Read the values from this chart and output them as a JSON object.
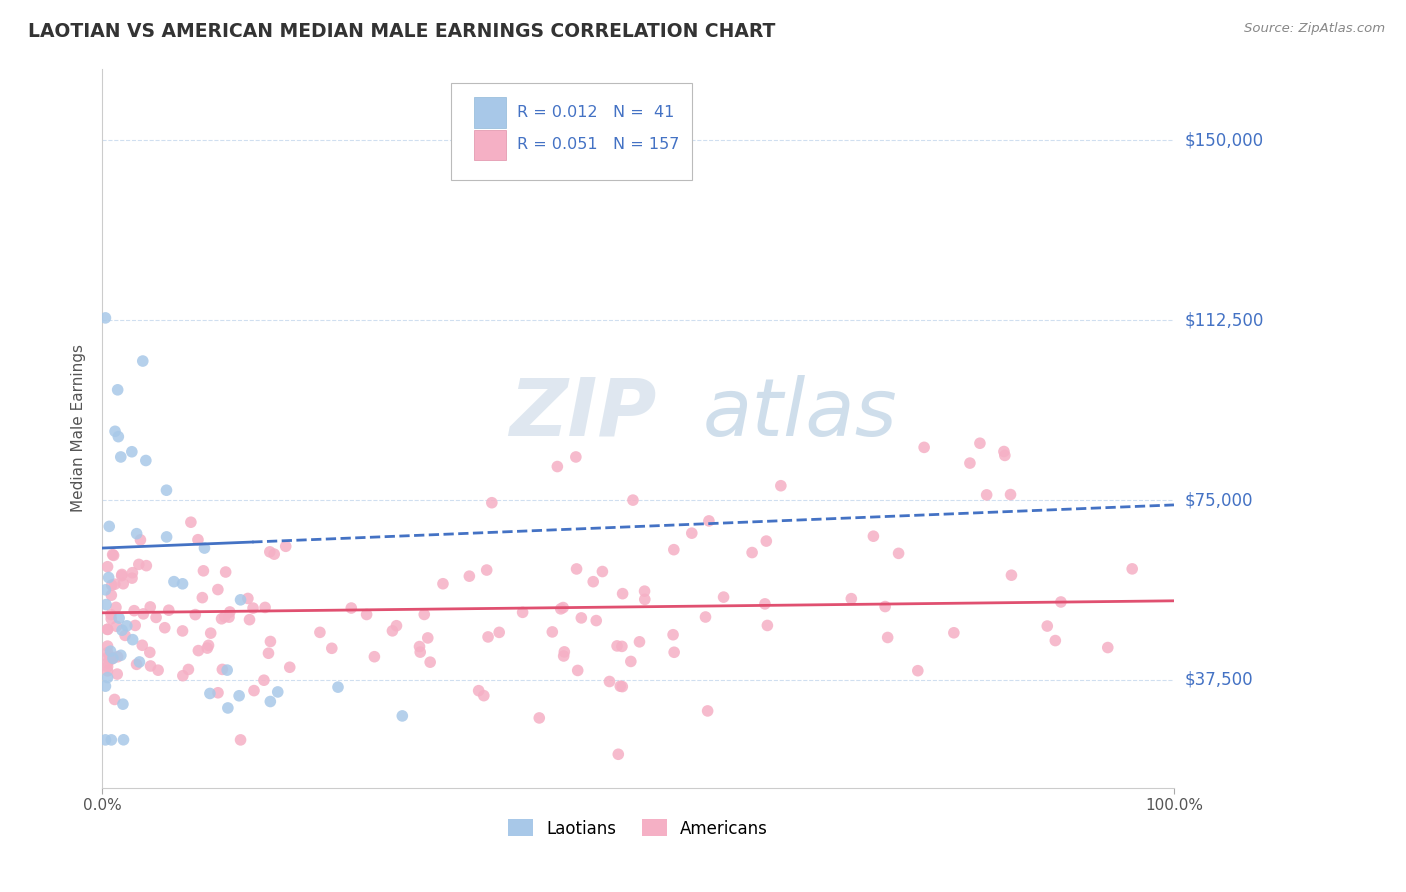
{
  "title": "LAOTIAN VS AMERICAN MEDIAN MALE EARNINGS CORRELATION CHART",
  "source": "Source: ZipAtlas.com",
  "ylabel": "Median Male Earnings",
  "xlim": [
    0,
    1.0
  ],
  "ylim": [
    15000,
    165000
  ],
  "yticks": [
    37500,
    75000,
    112500,
    150000
  ],
  "ytick_labels": [
    "$37,500",
    "$75,000",
    "$112,500",
    "$150,000"
  ],
  "xtick_labels": [
    "0.0%",
    "100.0%"
  ],
  "laotian_color": "#a8c8e8",
  "american_color": "#f5b0c5",
  "trend_laotian_color": "#4472C4",
  "trend_american_color": "#e05070",
  "legend_text_color": "#4472C4",
  "title_color": "#333333",
  "source_color": "#888888",
  "ylabel_color": "#555555",
  "grid_color": "#d0dff0",
  "background_color": "#ffffff",
  "watermark_zip_color": "#c8d8e8",
  "watermark_atlas_color": "#a8c0dc",
  "lao_trend_x0": 0.0,
  "lao_trend_y0": 65000,
  "lao_trend_x1": 1.0,
  "lao_trend_y1": 74000,
  "am_trend_x0": 0.0,
  "am_trend_y0": 51500,
  "am_trend_x1": 1.0,
  "am_trend_y1": 54000
}
